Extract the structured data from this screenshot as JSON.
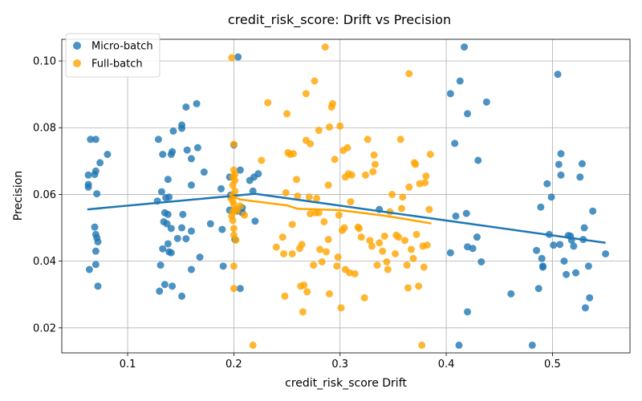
{
  "chart_data": {
    "type": "scatter",
    "title": "credit_risk_score: Drift vs Precision",
    "xlabel": "credit_risk_score Drift",
    "ylabel": "Precision",
    "xlim": [
      0.038,
      0.573
    ],
    "ylim": [
      0.0125,
      0.1065
    ],
    "xticks": [
      0.1,
      0.2,
      0.3,
      0.4,
      0.5
    ],
    "xtick_labels": [
      "0.1",
      "0.2",
      "0.3",
      "0.4",
      "0.5"
    ],
    "yticks": [
      0.02,
      0.04,
      0.06,
      0.08,
      0.1
    ],
    "ytick_labels": [
      "0.02",
      "0.04",
      "0.06",
      "0.08",
      "0.10"
    ],
    "grid": true,
    "legend_position": "upper-left",
    "series": [
      {
        "name": "Micro-batch",
        "color": "#1f77b4",
        "points": [
          [
            0.065,
            0.0765
          ],
          [
            0.07,
            0.0765
          ],
          [
            0.074,
            0.0695
          ],
          [
            0.081,
            0.072
          ],
          [
            0.063,
            0.0658
          ],
          [
            0.069,
            0.066
          ],
          [
            0.07,
            0.067
          ],
          [
            0.063,
            0.063
          ],
          [
            0.063,
            0.0622
          ],
          [
            0.071,
            0.0602
          ],
          [
            0.069,
            0.0502
          ],
          [
            0.07,
            0.048
          ],
          [
            0.071,
            0.047
          ],
          [
            0.072,
            0.0458
          ],
          [
            0.07,
            0.043
          ],
          [
            0.064,
            0.0375
          ],
          [
            0.07,
            0.039
          ],
          [
            0.072,
            0.0325
          ],
          [
            0.129,
            0.0765
          ],
          [
            0.133,
            0.072
          ],
          [
            0.141,
            0.072
          ],
          [
            0.142,
            0.0728
          ],
          [
            0.143,
            0.079
          ],
          [
            0.151,
            0.0808
          ],
          [
            0.151,
            0.0798
          ],
          [
            0.155,
            0.0862
          ],
          [
            0.165,
            0.0872
          ],
          [
            0.156,
            0.0733
          ],
          [
            0.16,
            0.0707
          ],
          [
            0.166,
            0.074
          ],
          [
            0.172,
            0.0667
          ],
          [
            0.16,
            0.0628
          ],
          [
            0.138,
            0.0645
          ],
          [
            0.132,
            0.0608
          ],
          [
            0.136,
            0.059
          ],
          [
            0.139,
            0.0592
          ],
          [
            0.128,
            0.058
          ],
          [
            0.135,
            0.0545
          ],
          [
            0.138,
            0.054
          ],
          [
            0.134,
            0.0518
          ],
          [
            0.137,
            0.0512
          ],
          [
            0.141,
            0.0498
          ],
          [
            0.152,
            0.054
          ],
          [
            0.151,
            0.05
          ],
          [
            0.16,
            0.049
          ],
          [
            0.147,
            0.0468
          ],
          [
            0.155,
            0.0467
          ],
          [
            0.133,
            0.0437
          ],
          [
            0.138,
            0.0452
          ],
          [
            0.139,
            0.0428
          ],
          [
            0.141,
            0.0425
          ],
          [
            0.131,
            0.0388
          ],
          [
            0.16,
            0.0375
          ],
          [
            0.168,
            0.0412
          ],
          [
            0.135,
            0.033
          ],
          [
            0.142,
            0.0325
          ],
          [
            0.13,
            0.031
          ],
          [
            0.151,
            0.0295
          ],
          [
            0.178,
            0.0512
          ],
          [
            0.188,
            0.0617
          ],
          [
            0.19,
            0.0385
          ],
          [
            0.189,
            0.0495
          ],
          [
            0.196,
            0.0652
          ],
          [
            0.2,
            0.0748
          ],
          [
            0.204,
            0.1012
          ],
          [
            0.206,
            0.0673
          ],
          [
            0.208,
            0.056
          ],
          [
            0.208,
            0.0545
          ],
          [
            0.203,
            0.055
          ],
          [
            0.196,
            0.0553
          ],
          [
            0.197,
            0.0598
          ],
          [
            0.201,
            0.0465
          ],
          [
            0.206,
            0.0318
          ],
          [
            0.215,
            0.0642
          ],
          [
            0.219,
            0.0652
          ],
          [
            0.223,
            0.0662
          ],
          [
            0.218,
            0.061
          ],
          [
            0.22,
            0.052
          ],
          [
            0.337,
            0.0555
          ],
          [
            0.404,
            0.0902
          ],
          [
            0.404,
            0.0425
          ],
          [
            0.408,
            0.0753
          ],
          [
            0.409,
            0.0535
          ],
          [
            0.413,
            0.094
          ],
          [
            0.417,
            0.1042
          ],
          [
            0.42,
            0.0842
          ],
          [
            0.419,
            0.0543
          ],
          [
            0.42,
            0.0443
          ],
          [
            0.42,
            0.0248
          ],
          [
            0.412,
            0.0148
          ],
          [
            0.425,
            0.0438
          ],
          [
            0.429,
            0.0472
          ],
          [
            0.43,
            0.0702
          ],
          [
            0.433,
            0.0398
          ],
          [
            0.438,
            0.0877
          ],
          [
            0.461,
            0.0302
          ],
          [
            0.481,
            0.0148
          ],
          [
            0.485,
            0.0432
          ],
          [
            0.487,
            0.0318
          ],
          [
            0.489,
            0.0562
          ],
          [
            0.49,
            0.0408
          ],
          [
            0.491,
            0.0385
          ],
          [
            0.491,
            0.0382
          ],
          [
            0.495,
            0.0632
          ],
          [
            0.497,
            0.048
          ],
          [
            0.499,
            0.0592
          ],
          [
            0.501,
            0.0448
          ],
          [
            0.505,
            0.096
          ],
          [
            0.506,
            0.069
          ],
          [
            0.507,
            0.045
          ],
          [
            0.508,
            0.0722
          ],
          [
            0.508,
            0.0658
          ],
          [
            0.511,
            0.04
          ],
          [
            0.513,
            0.036
          ],
          [
            0.515,
            0.0477
          ],
          [
            0.517,
            0.0475
          ],
          [
            0.518,
            0.0463
          ],
          [
            0.52,
            0.0445
          ],
          [
            0.522,
            0.0365
          ],
          [
            0.526,
            0.0652
          ],
          [
            0.528,
            0.0692
          ],
          [
            0.529,
            0.0465
          ],
          [
            0.53,
            0.05
          ],
          [
            0.531,
            0.026
          ],
          [
            0.534,
            0.0385
          ],
          [
            0.535,
            0.029
          ],
          [
            0.538,
            0.055
          ],
          [
            0.55,
            0.0422
          ]
        ]
      },
      {
        "name": "Full-batch",
        "color": "#ffa500",
        "points": [
          [
            0.198,
            0.101
          ],
          [
            0.2,
            0.075
          ],
          [
            0.199,
            0.0652
          ],
          [
            0.2,
            0.0673
          ],
          [
            0.201,
            0.066
          ],
          [
            0.201,
            0.0642
          ],
          [
            0.199,
            0.0628
          ],
          [
            0.201,
            0.061
          ],
          [
            0.199,
            0.0598
          ],
          [
            0.197,
            0.059
          ],
          [
            0.199,
            0.058
          ],
          [
            0.2,
            0.057
          ],
          [
            0.201,
            0.0555
          ],
          [
            0.199,
            0.0548
          ],
          [
            0.198,
            0.0535
          ],
          [
            0.199,
            0.0522
          ],
          [
            0.203,
            0.0552
          ],
          [
            0.21,
            0.0538
          ],
          [
            0.206,
            0.0565
          ],
          [
            0.2,
            0.0498
          ],
          [
            0.2,
            0.0478
          ],
          [
            0.202,
            0.0463
          ],
          [
            0.2,
            0.0385
          ],
          [
            0.2,
            0.0318
          ],
          [
            0.218,
            0.0148
          ],
          [
            0.226,
            0.0702
          ],
          [
            0.232,
            0.0875
          ],
          [
            0.24,
            0.0442
          ],
          [
            0.246,
            0.0472
          ],
          [
            0.247,
            0.0422
          ],
          [
            0.248,
            0.0295
          ],
          [
            0.249,
            0.0605
          ],
          [
            0.25,
            0.0842
          ],
          [
            0.251,
            0.0725
          ],
          [
            0.253,
            0.072
          ],
          [
            0.256,
            0.0722
          ],
          [
            0.255,
            0.051
          ],
          [
            0.255,
            0.0422
          ],
          [
            0.259,
            0.0645
          ],
          [
            0.26,
            0.0595
          ],
          [
            0.262,
            0.0438
          ],
          [
            0.263,
            0.0325
          ],
          [
            0.264,
            0.045
          ],
          [
            0.265,
            0.0248
          ],
          [
            0.266,
            0.0328
          ],
          [
            0.268,
            0.0902
          ],
          [
            0.268,
            0.0762
          ],
          [
            0.269,
            0.0308
          ],
          [
            0.271,
            0.0592
          ],
          [
            0.272,
            0.0752
          ],
          [
            0.272,
            0.0542
          ],
          [
            0.275,
            0.0388
          ],
          [
            0.276,
            0.094
          ],
          [
            0.277,
            0.0545
          ],
          [
            0.278,
            0.0588
          ],
          [
            0.28,
            0.0792
          ],
          [
            0.28,
            0.0545
          ],
          [
            0.281,
            0.0435
          ],
          [
            0.283,
            0.0398
          ],
          [
            0.285,
            0.0518
          ],
          [
            0.286,
            0.1042
          ],
          [
            0.287,
            0.0428
          ],
          [
            0.289,
            0.0628
          ],
          [
            0.289,
            0.0465
          ],
          [
            0.29,
            0.0302
          ],
          [
            0.29,
            0.0802
          ],
          [
            0.292,
            0.0862
          ],
          [
            0.293,
            0.0872
          ],
          [
            0.295,
            0.0705
          ],
          [
            0.297,
            0.0385
          ],
          [
            0.298,
            0.0412
          ],
          [
            0.299,
            0.0538
          ],
          [
            0.3,
            0.0805
          ],
          [
            0.301,
            0.026
          ],
          [
            0.302,
            0.0492
          ],
          [
            0.303,
            0.0732
          ],
          [
            0.304,
            0.05
          ],
          [
            0.305,
            0.0652
          ],
          [
            0.305,
            0.0375
          ],
          [
            0.307,
            0.074
          ],
          [
            0.308,
            0.0662
          ],
          [
            0.309,
            0.0365
          ],
          [
            0.31,
            0.0578
          ],
          [
            0.311,
            0.0658
          ],
          [
            0.314,
            0.0362
          ],
          [
            0.317,
            0.0502
          ],
          [
            0.318,
            0.0498
          ],
          [
            0.32,
            0.0472
          ],
          [
            0.323,
            0.029
          ],
          [
            0.324,
            0.0658
          ],
          [
            0.326,
            0.0765
          ],
          [
            0.328,
            0.0462
          ],
          [
            0.33,
            0.0445
          ],
          [
            0.331,
            0.0668
          ],
          [
            0.332,
            0.0718
          ],
          [
            0.333,
            0.069
          ],
          [
            0.335,
            0.0388
          ],
          [
            0.337,
            0.0455
          ],
          [
            0.34,
            0.043
          ],
          [
            0.342,
            0.0475
          ],
          [
            0.344,
            0.0398
          ],
          [
            0.345,
            0.0375
          ],
          [
            0.347,
            0.0548
          ],
          [
            0.349,
            0.06
          ],
          [
            0.352,
            0.0422
          ],
          [
            0.353,
            0.0478
          ],
          [
            0.355,
            0.0472
          ],
          [
            0.357,
            0.0765
          ],
          [
            0.358,
            0.0558
          ],
          [
            0.359,
            0.0592
          ],
          [
            0.361,
            0.0462
          ],
          [
            0.363,
            0.0388
          ],
          [
            0.364,
            0.032
          ],
          [
            0.365,
            0.0962
          ],
          [
            0.365,
            0.0622
          ],
          [
            0.367,
            0.0435
          ],
          [
            0.369,
            0.0408
          ],
          [
            0.37,
            0.0695
          ],
          [
            0.371,
            0.069
          ],
          [
            0.372,
            0.048
          ],
          [
            0.374,
            0.0325
          ],
          [
            0.375,
            0.0632
          ],
          [
            0.377,
            0.0148
          ],
          [
            0.378,
            0.0445
          ],
          [
            0.379,
            0.0382
          ],
          [
            0.38,
            0.0635
          ],
          [
            0.381,
            0.0655
          ],
          [
            0.382,
            0.0448
          ],
          [
            0.384,
            0.0555
          ],
          [
            0.385,
            0.072
          ]
        ]
      }
    ],
    "trend_lines": [
      {
        "series": "Micro-batch",
        "color": "#1f77b4",
        "points": [
          [
            0.062,
            0.0555
          ],
          [
            0.22,
            0.0602
          ],
          [
            0.55,
            0.0455
          ]
        ]
      },
      {
        "series": "Full-batch",
        "color": "#ffa500",
        "points": [
          [
            0.196,
            0.0598
          ],
          [
            0.206,
            0.0585
          ],
          [
            0.25,
            0.0567
          ],
          [
            0.26,
            0.0557
          ],
          [
            0.3,
            0.0553
          ],
          [
            0.34,
            0.0537
          ],
          [
            0.36,
            0.0527
          ],
          [
            0.386,
            0.0513
          ]
        ]
      }
    ]
  }
}
